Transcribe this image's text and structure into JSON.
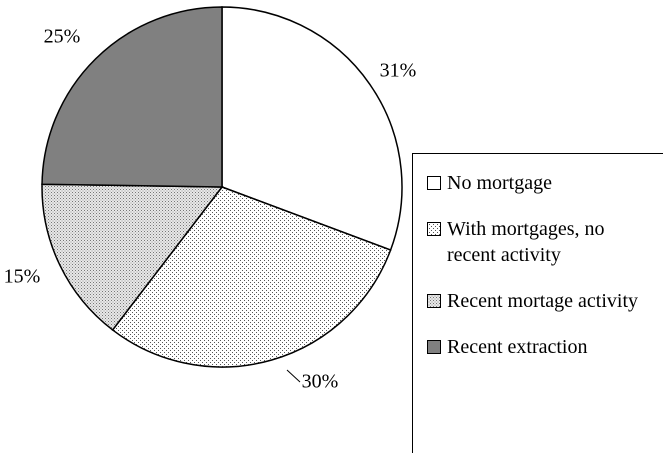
{
  "chart_data": {
    "type": "pie",
    "categories": [
      "No mortgage",
      "With mortgages, no recent activity",
      "Recent mortage activity",
      "Recent extraction"
    ],
    "values": [
      31,
      30,
      15,
      25
    ],
    "value_labels": [
      "31%",
      "30%",
      "15%",
      "25%"
    ],
    "colors": [
      "#ffffff",
      "url(#p1)",
      "url(#p2)",
      "#808080"
    ],
    "legend": "right"
  }
}
